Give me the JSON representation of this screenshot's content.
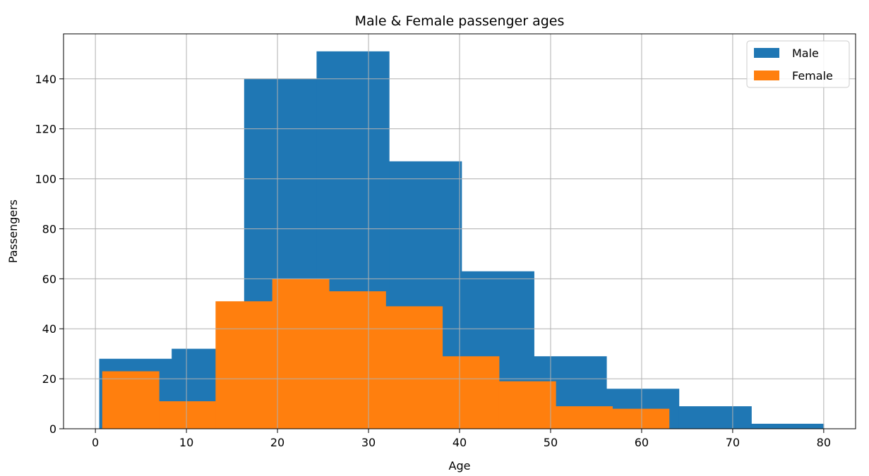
{
  "chart_data": {
    "type": "bar",
    "subtype": "histogram-overlay",
    "title": "Male & Female passenger ages",
    "xlabel": "Age",
    "ylabel": "Passengers",
    "xlim": [
      -3.5,
      83.5
    ],
    "ylim": [
      0,
      158
    ],
    "xticks": [
      0,
      10,
      20,
      30,
      40,
      50,
      60,
      70,
      80
    ],
    "yticks": [
      0,
      20,
      40,
      60,
      80,
      100,
      120,
      140
    ],
    "grid": true,
    "legend_position": "top-right",
    "series": [
      {
        "name": "Male",
        "color": "#1f77b4",
        "bin_edges": [
          0.42,
          8.378,
          16.336,
          24.294,
          32.252,
          40.21,
          48.168,
          56.126,
          64.084,
          72.042,
          80.0
        ],
        "values": [
          28,
          32,
          140,
          151,
          107,
          63,
          29,
          16,
          9,
          2
        ]
      },
      {
        "name": "Female",
        "color": "#ff7f0e",
        "bin_edges": [
          0.75,
          6.975,
          13.2,
          19.425,
          25.65,
          31.875,
          38.1,
          44.325,
          50.55,
          56.775,
          63.0
        ],
        "values": [
          23,
          11,
          51,
          60,
          55,
          49,
          29,
          19,
          9,
          8
        ]
      }
    ]
  }
}
